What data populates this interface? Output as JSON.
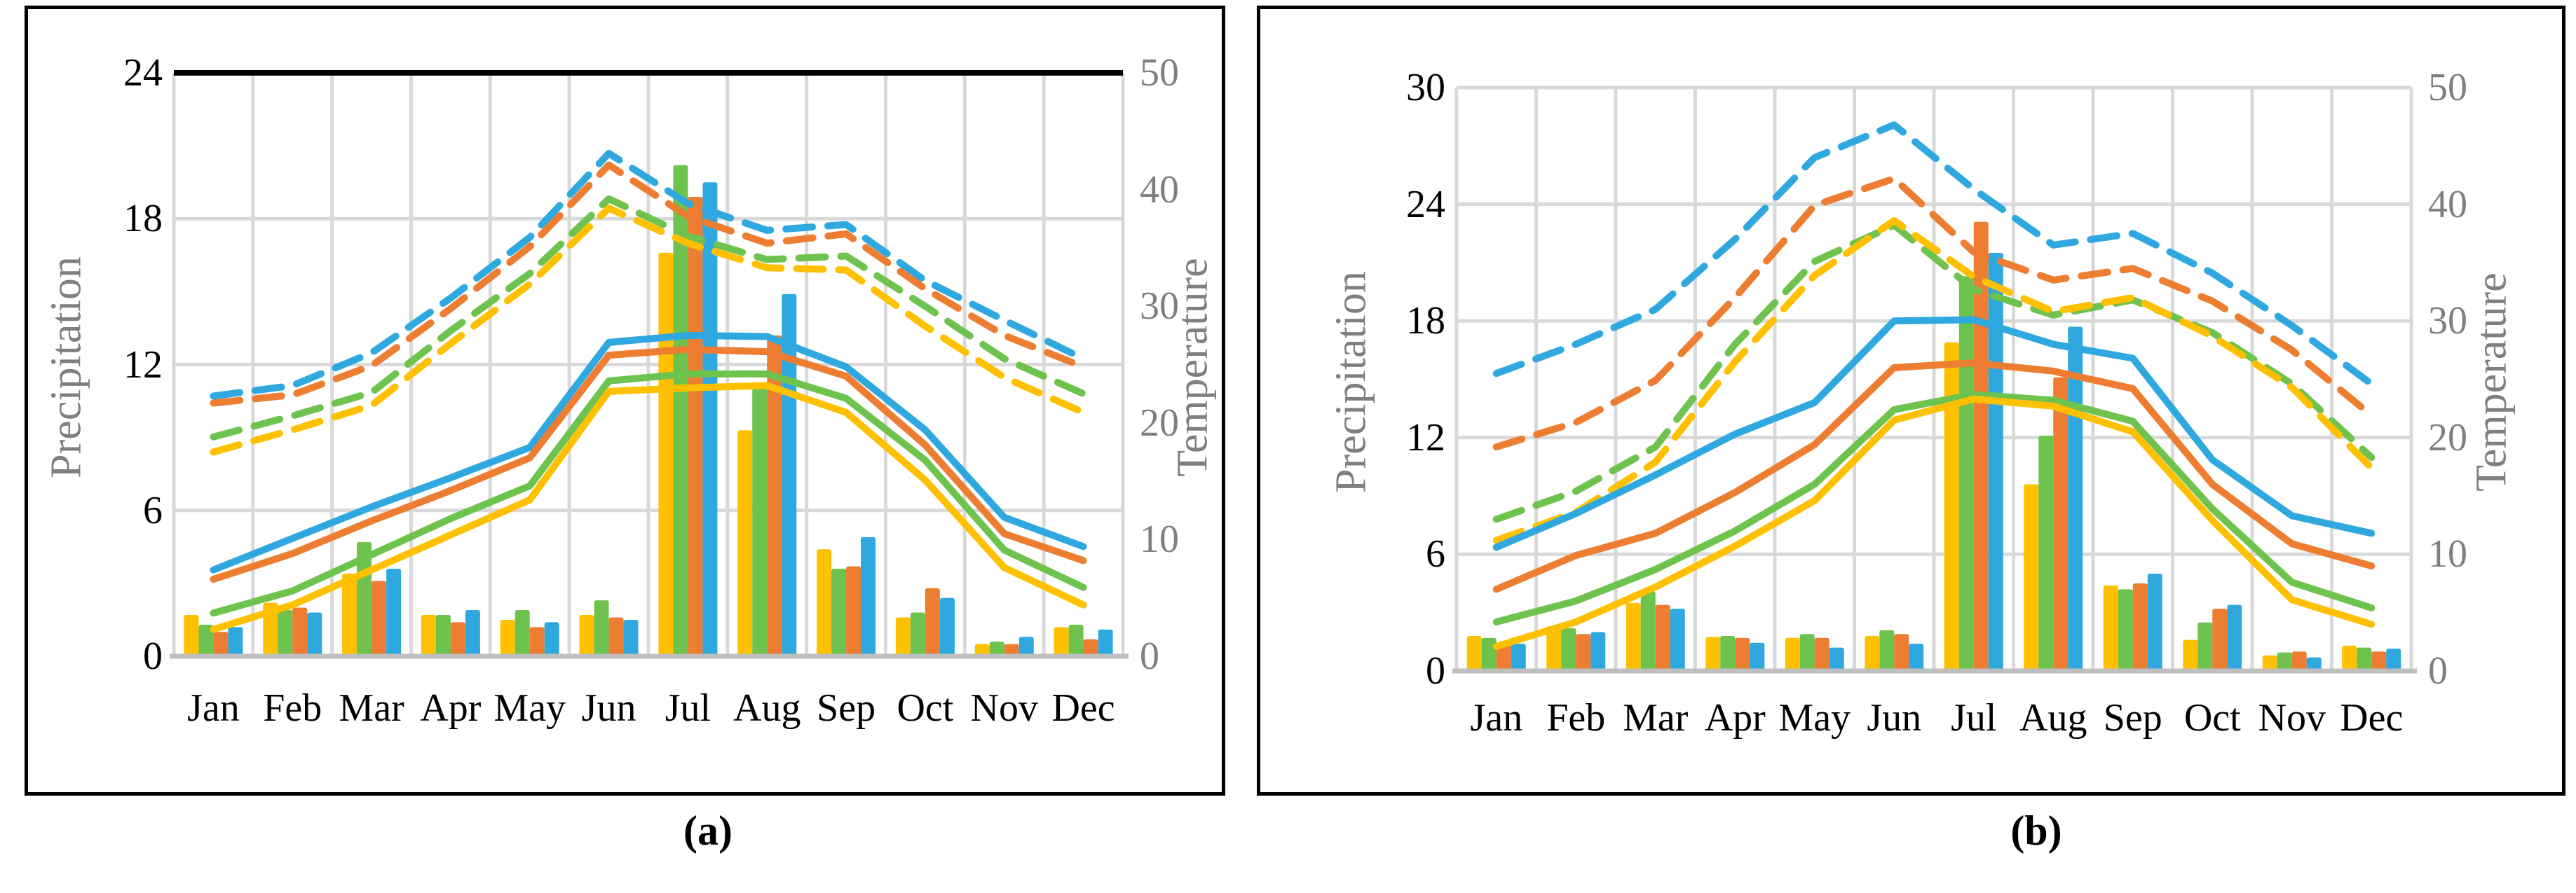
{
  "figure": {
    "caption_a": "(a)",
    "caption_b": "(b)",
    "months": [
      "Jan",
      "Feb",
      "Mar",
      "Apr",
      "May",
      "Jun",
      "Jul",
      "Aug",
      "Sep",
      "Oct",
      "Nov",
      "Dec"
    ],
    "colors": {
      "yellow": "#FFC000",
      "green": "#6EC24E",
      "orange": "#ED7D31",
      "blue": "#2FA8E0",
      "grid": "#D9D9D9",
      "axis_line": "#BFBFBF",
      "top_border_a": "#000000",
      "tick_text": "#000000",
      "axis_title_text": "#7F7F7F"
    }
  },
  "chart_data": [
    {
      "id": "a",
      "type": "combo-bar-line",
      "title": "",
      "ylabel_left": "Precipitation",
      "ylabel_right": "Temperature",
      "categories": [
        "Jan",
        "Feb",
        "Mar",
        "Apr",
        "May",
        "Jun",
        "Jul",
        "Aug",
        "Sep",
        "Oct",
        "Nov",
        "Dec"
      ],
      "y_left": {
        "min": 0,
        "max": 24,
        "ticks": [
          24,
          18,
          12,
          6,
          0
        ]
      },
      "y_right": {
        "min": 0,
        "max": 50,
        "ticks": [
          50,
          40,
          30,
          20,
          10,
          0
        ]
      },
      "legend": "none",
      "grid": "on",
      "top_border_black": true,
      "bar_series": [
        {
          "name": "precip-yellow",
          "color": "yellow",
          "values": [
            1.7,
            2.2,
            3.4,
            1.7,
            1.5,
            1.7,
            16.6,
            9.3,
            4.4,
            1.6,
            0.5,
            1.2
          ]
        },
        {
          "name": "precip-green",
          "color": "green",
          "values": [
            1.3,
            1.9,
            4.7,
            1.7,
            1.9,
            2.3,
            20.2,
            11.0,
            3.6,
            1.8,
            0.6,
            1.3
          ]
        },
        {
          "name": "precip-orange",
          "color": "orange",
          "values": [
            1.0,
            2.0,
            3.1,
            1.4,
            1.2,
            1.6,
            18.9,
            13.2,
            3.7,
            2.8,
            0.5,
            0.7
          ]
        },
        {
          "name": "precip-blue",
          "color": "blue",
          "values": [
            1.2,
            1.8,
            3.6,
            1.9,
            1.4,
            1.5,
            19.5,
            14.9,
            4.9,
            2.4,
            0.8,
            1.1
          ]
        }
      ],
      "solid_line_series": [
        {
          "name": "temp-mean-blue",
          "color": "blue",
          "values": [
            7.4,
            10.1,
            12.8,
            15.3,
            17.9,
            26.9,
            27.5,
            27.4,
            24.8,
            19.4,
            11.9,
            9.4
          ]
        },
        {
          "name": "temp-mean-orange",
          "color": "orange",
          "values": [
            6.6,
            8.8,
            11.6,
            14.2,
            17.0,
            25.8,
            26.3,
            26.1,
            24.0,
            18.1,
            10.5,
            8.2
          ]
        },
        {
          "name": "temp-mean-green",
          "color": "green",
          "values": [
            3.7,
            5.6,
            8.7,
            11.8,
            14.6,
            23.6,
            24.2,
            24.2,
            22.1,
            16.8,
            9.1,
            5.9
          ]
        },
        {
          "name": "temp-mean-yellow",
          "color": "yellow",
          "values": [
            2.3,
            4.4,
            7.4,
            10.4,
            13.4,
            22.7,
            23.0,
            23.2,
            20.9,
            15.1,
            7.6,
            4.4
          ]
        }
      ],
      "dashed_line_series": [
        {
          "name": "temp-max-blue",
          "color": "blue",
          "values": [
            22.3,
            23.2,
            26.0,
            30.7,
            35.9,
            43.1,
            38.8,
            36.5,
            37.0,
            32.2,
            28.8,
            25.5
          ]
        },
        {
          "name": "temp-max-orange",
          "color": "orange",
          "values": [
            21.7,
            22.4,
            24.9,
            29.8,
            35.1,
            42.1,
            37.7,
            35.4,
            36.2,
            31.5,
            27.5,
            24.8
          ]
        },
        {
          "name": "temp-max-green",
          "color": "green",
          "values": [
            18.8,
            20.6,
            22.6,
            27.9,
            32.8,
            39.2,
            36.0,
            34.0,
            34.3,
            30.0,
            25.5,
            22.5
          ]
        },
        {
          "name": "temp-max-yellow",
          "color": "yellow",
          "values": [
            17.5,
            19.4,
            21.5,
            26.8,
            31.9,
            38.4,
            35.4,
            33.3,
            33.1,
            28.3,
            23.9,
            20.9
          ]
        }
      ]
    },
    {
      "id": "b",
      "type": "combo-bar-line",
      "title": "",
      "ylabel_left": "Precipitation",
      "ylabel_right": "Temperature",
      "categories": [
        "Jan",
        "Feb",
        "Mar",
        "Apr",
        "May",
        "Jun",
        "Jul",
        "Aug",
        "Sep",
        "Oct",
        "Nov",
        "Dec"
      ],
      "y_left": {
        "min": 0,
        "max": 30,
        "ticks": [
          30,
          24,
          18,
          12,
          6,
          0
        ]
      },
      "y_right": {
        "min": 0,
        "max": 50,
        "ticks": [
          50,
          40,
          30,
          20,
          10,
          0
        ]
      },
      "legend": "none",
      "grid": "on",
      "top_border_black": false,
      "bar_series": [
        {
          "name": "precip-yellow",
          "color": "yellow",
          "values": [
            1.8,
            2.3,
            3.5,
            1.75,
            1.7,
            1.8,
            16.9,
            9.6,
            4.4,
            1.6,
            0.8,
            1.3
          ]
        },
        {
          "name": "precip-green",
          "color": "green",
          "values": [
            1.7,
            2.2,
            4.1,
            1.8,
            1.9,
            2.1,
            20.3,
            12.1,
            4.2,
            2.5,
            0.95,
            1.2
          ]
        },
        {
          "name": "precip-orange",
          "color": "orange",
          "values": [
            1.4,
            1.9,
            3.4,
            1.7,
            1.7,
            1.9,
            23.1,
            15.1,
            4.5,
            3.2,
            1.0,
            1.0
          ]
        },
        {
          "name": "precip-blue",
          "color": "blue",
          "values": [
            1.4,
            2.0,
            3.2,
            1.45,
            1.2,
            1.4,
            21.5,
            17.7,
            5.0,
            3.4,
            0.7,
            1.15
          ]
        }
      ],
      "solid_line_series": [
        {
          "name": "temp-mean-blue",
          "color": "blue",
          "values": [
            10.6,
            13.5,
            16.8,
            20.3,
            23.0,
            30.0,
            30.1,
            28.0,
            26.8,
            18.1,
            13.3,
            11.8
          ]
        },
        {
          "name": "temp-mean-orange",
          "color": "orange",
          "values": [
            7.0,
            9.9,
            11.8,
            15.3,
            19.4,
            26.0,
            26.4,
            25.7,
            24.2,
            16.0,
            10.9,
            9.0
          ]
        },
        {
          "name": "temp-mean-green",
          "color": "green",
          "values": [
            4.2,
            6.0,
            8.7,
            12.0,
            16.0,
            22.4,
            23.7,
            23.2,
            21.4,
            13.9,
            7.6,
            5.4
          ]
        },
        {
          "name": "temp-mean-yellow",
          "color": "yellow",
          "values": [
            2.1,
            4.2,
            7.2,
            10.7,
            14.6,
            21.5,
            23.3,
            22.7,
            20.5,
            12.9,
            6.1,
            4.0
          ]
        }
      ],
      "dashed_line_series": [
        {
          "name": "temp-max-blue",
          "color": "blue",
          "values": [
            25.5,
            28.0,
            31.0,
            37.0,
            44.0,
            46.8,
            41.3,
            36.5,
            37.5,
            34.1,
            29.6,
            24.6
          ]
        },
        {
          "name": "temp-max-orange",
          "color": "orange",
          "values": [
            19.2,
            21.3,
            24.9,
            32.0,
            39.9,
            42.2,
            35.9,
            33.5,
            34.5,
            31.7,
            27.5,
            21.9
          ]
        },
        {
          "name": "temp-max-green",
          "color": "green",
          "values": [
            13.0,
            15.4,
            19.2,
            28.0,
            35.1,
            38.2,
            32.7,
            30.5,
            31.8,
            29.0,
            24.6,
            18.3
          ]
        },
        {
          "name": "temp-max-yellow",
          "color": "yellow",
          "values": [
            11.2,
            13.6,
            17.9,
            26.5,
            33.9,
            38.6,
            33.8,
            30.8,
            32.0,
            28.7,
            24.3,
            17.4
          ]
        }
      ]
    }
  ]
}
